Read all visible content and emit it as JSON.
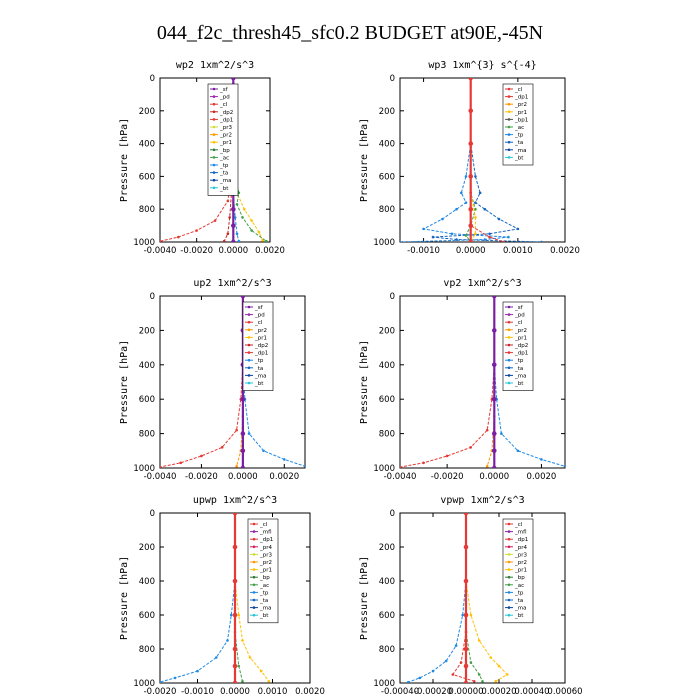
{
  "figure": {
    "title": "044_f2c_thresh45_sfc0.2  BUDGET at90E,-45N"
  },
  "legend_colors": {
    "_sf": "#7b1fa2",
    "_pd": "#9c27b0",
    "_cl": "#e53935",
    "_dp2": "#c62828",
    "_dp1": "#e53935",
    "_pr1": "#ffc107",
    "_pr2": "#ff9800",
    "_pr3": "#cddc39",
    "_pr4": "#d81b60",
    "_bp": "#2e7d32",
    "_ac": "#43a047",
    "_tp": "#1e88e5",
    "_ta": "#1565c0",
    "_ma": "#0d47a1",
    "_bt": "#26c6da",
    "_mfl": "#8e24aa"
  },
  "chart_data": [
    {
      "type": "line",
      "title": "wp2  1xm^2/s^3",
      "ylabel": "Pressure [hPa]",
      "xlim": [
        -0.004,
        0.002
      ],
      "ylim": [
        1000,
        0
      ],
      "xticks": [
        "-0.0040",
        "-0.0020",
        "0.0000",
        "0.0020"
      ],
      "xtick_values": [
        -0.004,
        -0.002,
        0.0,
        0.002
      ],
      "yticks": [
        "0",
        "200",
        "400",
        "600",
        "800",
        "1000"
      ],
      "ytick_values": [
        0,
        200,
        400,
        600,
        800,
        1000
      ],
      "legend": [
        "_sf",
        "_pd",
        "_cl",
        "_dp2",
        "_dp1",
        "_pr3",
        "_pr2",
        "_pr1",
        "_bp",
        "_ac",
        "_tp",
        "_ta",
        "_ma",
        "_bt"
      ],
      "series": [
        {
          "key": "_pr1",
          "x": [
            0,
            0,
            0,
            0.0001,
            0.0002,
            0.0006,
            0.001,
            0.0014,
            0.0016
          ],
          "y": [
            0,
            200,
            400,
            600,
            700,
            800,
            870,
            940,
            990
          ]
        },
        {
          "key": "_ac",
          "x": [
            0,
            0,
            0,
            0.0001,
            0.0003,
            0.0002,
            0.0005,
            0.001,
            0.0018
          ],
          "y": [
            0,
            200,
            400,
            600,
            700,
            770,
            850,
            930,
            995
          ]
        },
        {
          "key": "_cl",
          "x": [
            0,
            0,
            0,
            -0.0001,
            -0.0003,
            -0.001,
            -0.002,
            -0.003,
            -0.004
          ],
          "y": [
            0,
            200,
            400,
            600,
            750,
            870,
            930,
            970,
            995
          ]
        },
        {
          "key": "_dp2",
          "x": [
            0,
            0,
            0,
            -0.0001,
            -0.0002,
            -0.0003,
            -0.0005
          ],
          "y": [
            0,
            200,
            400,
            700,
            850,
            950,
            995
          ]
        },
        {
          "key": "_tp",
          "x": [
            0,
            0,
            0,
            0,
            0.0001,
            0.0002,
            0.0003
          ],
          "y": [
            0,
            200,
            400,
            700,
            850,
            950,
            995
          ]
        },
        {
          "key": "_sf",
          "x": [
            0,
            0,
            0,
            0,
            0,
            0,
            0
          ],
          "y": [
            0,
            200,
            400,
            600,
            800,
            900,
            1000
          ]
        }
      ]
    },
    {
      "type": "line",
      "title": "wp3  1xm^{3} s^{-4}",
      "ylabel": "Pressure [hPa]",
      "xlim": [
        -0.0015,
        0.002
      ],
      "ylim": [
        1000,
        0
      ],
      "xticks": [
        "-0.0010",
        "0.0000",
        "0.0010",
        "0.0020"
      ],
      "xtick_values": [
        -0.001,
        0.0,
        0.001,
        0.002
      ],
      "yticks": [
        "0",
        "200",
        "400",
        "600",
        "800",
        "1000"
      ],
      "ytick_values": [
        0,
        200,
        400,
        600,
        800,
        1000
      ],
      "legend": [
        "_cl",
        "_dp1",
        "_pr2",
        "_pr1",
        "_bp1",
        "_ac",
        "_tp",
        "_ta",
        "_ma",
        "_bt"
      ],
      "series": [
        {
          "key": "_tp",
          "x": [
            0,
            0,
            0,
            -0.0001,
            -0.0002,
            -0.0001,
            -0.0003,
            -0.0006,
            -0.001,
            -0.0004,
            0.0008,
            0.0003,
            -0.0015
          ],
          "y": [
            0,
            200,
            400,
            600,
            700,
            760,
            800,
            860,
            920,
            950,
            970,
            985,
            1000
          ]
        },
        {
          "key": "_ta",
          "x": [
            0,
            0,
            0,
            0.0001,
            0.0002,
            0.0001,
            0.0003,
            0.0006,
            0.001,
            0.0004,
            -0.0008,
            -0.0003,
            0.0015
          ],
          "y": [
            0,
            200,
            400,
            600,
            700,
            760,
            800,
            860,
            920,
            950,
            970,
            985,
            1000
          ]
        },
        {
          "key": "_ac",
          "x": [
            0,
            0,
            0,
            0,
            0.0001,
            0,
            -0.0001,
            0
          ],
          "y": [
            0,
            200,
            400,
            700,
            800,
            900,
            960,
            1000
          ]
        },
        {
          "key": "_pr1",
          "x": [
            0,
            0,
            0,
            0,
            0.0001,
            0.0001,
            0
          ],
          "y": [
            0,
            200,
            400,
            700,
            850,
            950,
            1000
          ]
        },
        {
          "key": "_cl",
          "x": [
            0,
            0,
            0,
            0,
            0,
            0.0004,
            0.0007
          ],
          "y": [
            0,
            200,
            400,
            700,
            900,
            970,
            1000
          ]
        },
        {
          "key": "_dp1",
          "x": [
            0,
            0,
            0,
            0,
            0,
            0,
            0
          ],
          "y": [
            0,
            200,
            400,
            600,
            800,
            900,
            1000
          ]
        }
      ]
    },
    {
      "type": "line",
      "title": "up2  1xm^2/s^3",
      "ylabel": "Pressure [hPa]",
      "xlim": [
        -0.004,
        0.003
      ],
      "ylim": [
        1000,
        0
      ],
      "xticks": [
        "-0.0040",
        "-0.0020",
        "0.0000",
        "0.0020"
      ],
      "xtick_values": [
        -0.004,
        -0.002,
        0.0,
        0.002
      ],
      "yticks": [
        "0",
        "200",
        "400",
        "600",
        "800",
        "1000"
      ],
      "ytick_values": [
        0,
        200,
        400,
        600,
        800,
        1000
      ],
      "legend": [
        "_sf",
        "_pd",
        "_cl",
        "_pr2",
        "_pr1",
        "_dp2",
        "_dp1",
        "_tp",
        "_ta",
        "_ma",
        "_bt"
      ],
      "series": [
        {
          "key": "_dp1",
          "x": [
            0,
            0,
            0,
            -0.0001,
            -0.0003,
            -0.001,
            -0.002,
            -0.003,
            -0.004
          ],
          "y": [
            0,
            200,
            400,
            600,
            780,
            880,
            930,
            970,
            995
          ]
        },
        {
          "key": "_tp",
          "x": [
            0,
            0,
            0,
            0.0001,
            0.0003,
            0.001,
            0.002,
            0.003
          ],
          "y": [
            0,
            200,
            400,
            600,
            800,
            900,
            950,
            990
          ]
        },
        {
          "key": "_pr2",
          "x": [
            0,
            0,
            0,
            0,
            -0.0001,
            -0.0003
          ],
          "y": [
            0,
            200,
            400,
            700,
            900,
            990
          ]
        },
        {
          "key": "_sf",
          "x": [
            0,
            0,
            0,
            0,
            0,
            0,
            0
          ],
          "y": [
            0,
            200,
            400,
            600,
            800,
            900,
            1000
          ]
        }
      ]
    },
    {
      "type": "line",
      "title": "vp2  1xm^2/s^3",
      "ylabel": "Pressure [hPa]",
      "xlim": [
        -0.004,
        0.003
      ],
      "ylim": [
        1000,
        0
      ],
      "xticks": [
        "-0.0040",
        "-0.0020",
        "0.0000",
        "0.0020"
      ],
      "xtick_values": [
        -0.004,
        -0.002,
        0.0,
        0.002
      ],
      "yticks": [
        "0",
        "200",
        "400",
        "600",
        "800",
        "1000"
      ],
      "ytick_values": [
        0,
        200,
        400,
        600,
        800,
        1000
      ],
      "legend": [
        "_sf",
        "_pd",
        "_cl",
        "_pr2",
        "_pr1",
        "_dp2",
        "_dp1",
        "_tp",
        "_ta",
        "_ma",
        "_bt"
      ],
      "series": [
        {
          "key": "_dp1",
          "x": [
            0,
            0,
            0,
            -0.0001,
            -0.0003,
            -0.001,
            -0.002,
            -0.003,
            -0.004
          ],
          "y": [
            0,
            200,
            400,
            600,
            780,
            880,
            930,
            970,
            995
          ]
        },
        {
          "key": "_tp",
          "x": [
            0,
            0,
            0,
            0.0001,
            0.0003,
            0.001,
            0.002,
            0.003
          ],
          "y": [
            0,
            200,
            400,
            600,
            800,
            900,
            950,
            990
          ]
        },
        {
          "key": "_pr2",
          "x": [
            0,
            0,
            0,
            0,
            -0.0001,
            -0.0003
          ],
          "y": [
            0,
            200,
            400,
            700,
            900,
            990
          ]
        },
        {
          "key": "_sf",
          "x": [
            0,
            0,
            0,
            0,
            0,
            0,
            0
          ],
          "y": [
            0,
            200,
            400,
            600,
            800,
            900,
            1000
          ]
        }
      ]
    },
    {
      "type": "line",
      "title": "upwp  1xm^2/s^3",
      "ylabel": "Pressure [hPa]",
      "xlim": [
        -0.002,
        0.002
      ],
      "ylim": [
        1000,
        0
      ],
      "xticks": [
        "-0.0020",
        "-0.0010",
        "0.0000",
        "0.0010",
        "0.0020"
      ],
      "xtick_values": [
        -0.002,
        -0.001,
        0.0,
        0.001,
        0.002
      ],
      "yticks": [
        "0",
        "200",
        "400",
        "600",
        "800",
        "1000"
      ],
      "ytick_values": [
        0,
        200,
        400,
        600,
        800,
        1000
      ],
      "legend": [
        "_cl",
        "_mfl",
        "_dp1",
        "_pr4",
        "_pr3",
        "_pr2",
        "_pr1",
        "_bp",
        "_ac",
        "_tp",
        "_ta",
        "_ma",
        "_bt"
      ],
      "series": [
        {
          "key": "_pr1",
          "x": [
            0,
            0,
            0,
            0.0001,
            0.0002,
            0.0004,
            0.0007,
            0.0009
          ],
          "y": [
            0,
            200,
            400,
            600,
            750,
            850,
            930,
            990
          ]
        },
        {
          "key": "_tp",
          "x": [
            0,
            0,
            0,
            -0.0001,
            -0.0002,
            -0.0005,
            -0.001,
            -0.0016,
            -0.002
          ],
          "y": [
            0,
            200,
            400,
            600,
            750,
            850,
            930,
            970,
            995
          ]
        },
        {
          "key": "_ac",
          "x": [
            0,
            0,
            0,
            0,
            0.0001,
            0.0002
          ],
          "y": [
            0,
            200,
            400,
            700,
            900,
            990
          ]
        },
        {
          "key": "_cl",
          "x": [
            0,
            0,
            0,
            0,
            0,
            0,
            0
          ],
          "y": [
            0,
            200,
            400,
            600,
            800,
            900,
            1000
          ]
        }
      ]
    },
    {
      "type": "line",
      "title": "vpwp  1xm^2/s^3",
      "ylabel": "Pressure [hPa]",
      "xlim": [
        -0.0004,
        0.0006
      ],
      "ylim": [
        1000,
        0
      ],
      "xticks": [
        "-0.00040",
        "-0.00020",
        "0.00000",
        "0.00020",
        "0.00040",
        "0.00060"
      ],
      "xtick_values": [
        -0.0004,
        -0.0002,
        0.0,
        0.0002,
        0.0004,
        0.0006
      ],
      "yticks": [
        "0",
        "200",
        "400",
        "600",
        "800",
        "1000"
      ],
      "ytick_values": [
        0,
        200,
        400,
        600,
        800,
        1000
      ],
      "legend": [
        "_cl",
        "_mfl",
        "_dp1",
        "_pr4",
        "_pr3",
        "_pr2",
        "_pr1",
        "_bp",
        "_ac",
        "_tp",
        "_ta",
        "_ma",
        "_bt"
      ],
      "series": [
        {
          "key": "_pr1",
          "x": [
            0,
            0,
            0,
            3e-05,
            8e-05,
            0.00015,
            0.0002,
            0.00025,
            0.00018
          ],
          "y": [
            0,
            200,
            400,
            600,
            750,
            850,
            900,
            950,
            990
          ]
        },
        {
          "key": "_tp",
          "x": [
            0,
            0,
            0,
            -2e-05,
            -6e-05,
            -0.00012,
            -0.0002,
            -0.00028,
            -0.00035
          ],
          "y": [
            0,
            200,
            400,
            600,
            780,
            870,
            930,
            970,
            995
          ]
        },
        {
          "key": "_ac",
          "x": [
            0,
            0,
            0,
            0,
            3e-05,
            8e-05,
            0.0001
          ],
          "y": [
            0,
            200,
            400,
            700,
            880,
            950,
            990
          ]
        },
        {
          "key": "_dp1",
          "x": [
            0,
            0,
            0,
            0,
            -3e-05,
            -8e-05,
            5e-05
          ],
          "y": [
            0,
            200,
            400,
            700,
            880,
            950,
            990
          ]
        },
        {
          "key": "_cl",
          "x": [
            0,
            0,
            0,
            0,
            0,
            0,
            0
          ],
          "y": [
            0,
            200,
            400,
            600,
            800,
            900,
            1000
          ]
        }
      ]
    }
  ]
}
